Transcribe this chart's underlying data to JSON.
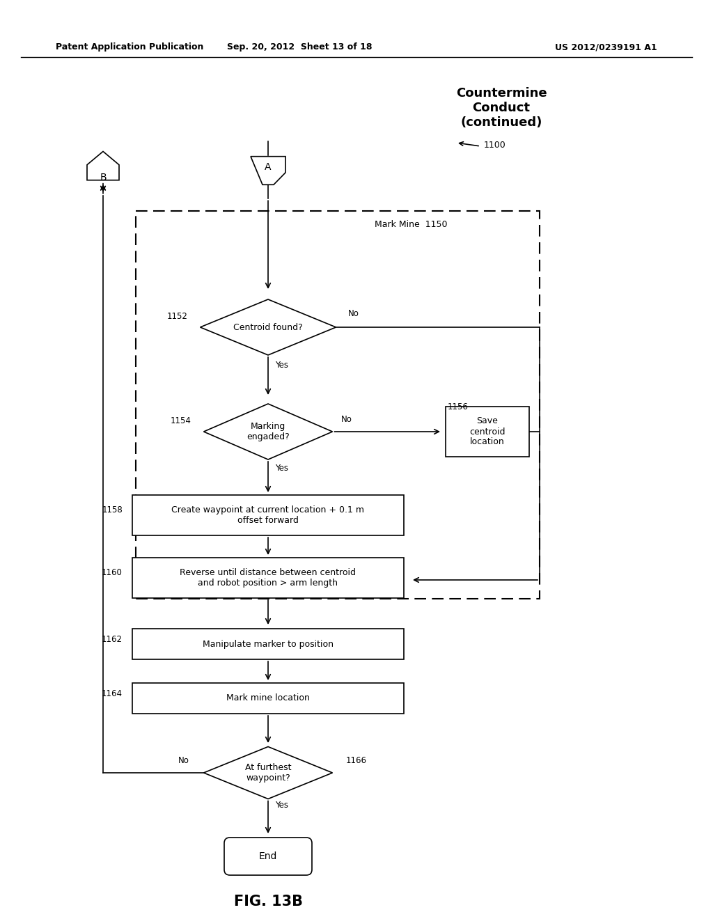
{
  "header_left": "Patent Application Publication",
  "header_mid": "Sep. 20, 2012  Sheet 13 of 18",
  "header_right": "US 2012/0239191 A1",
  "title": "Countermine\nConduct\n(continued)",
  "title_label": "1100",
  "fig_label": "FIG. 13B",
  "bg_color": "#ffffff"
}
